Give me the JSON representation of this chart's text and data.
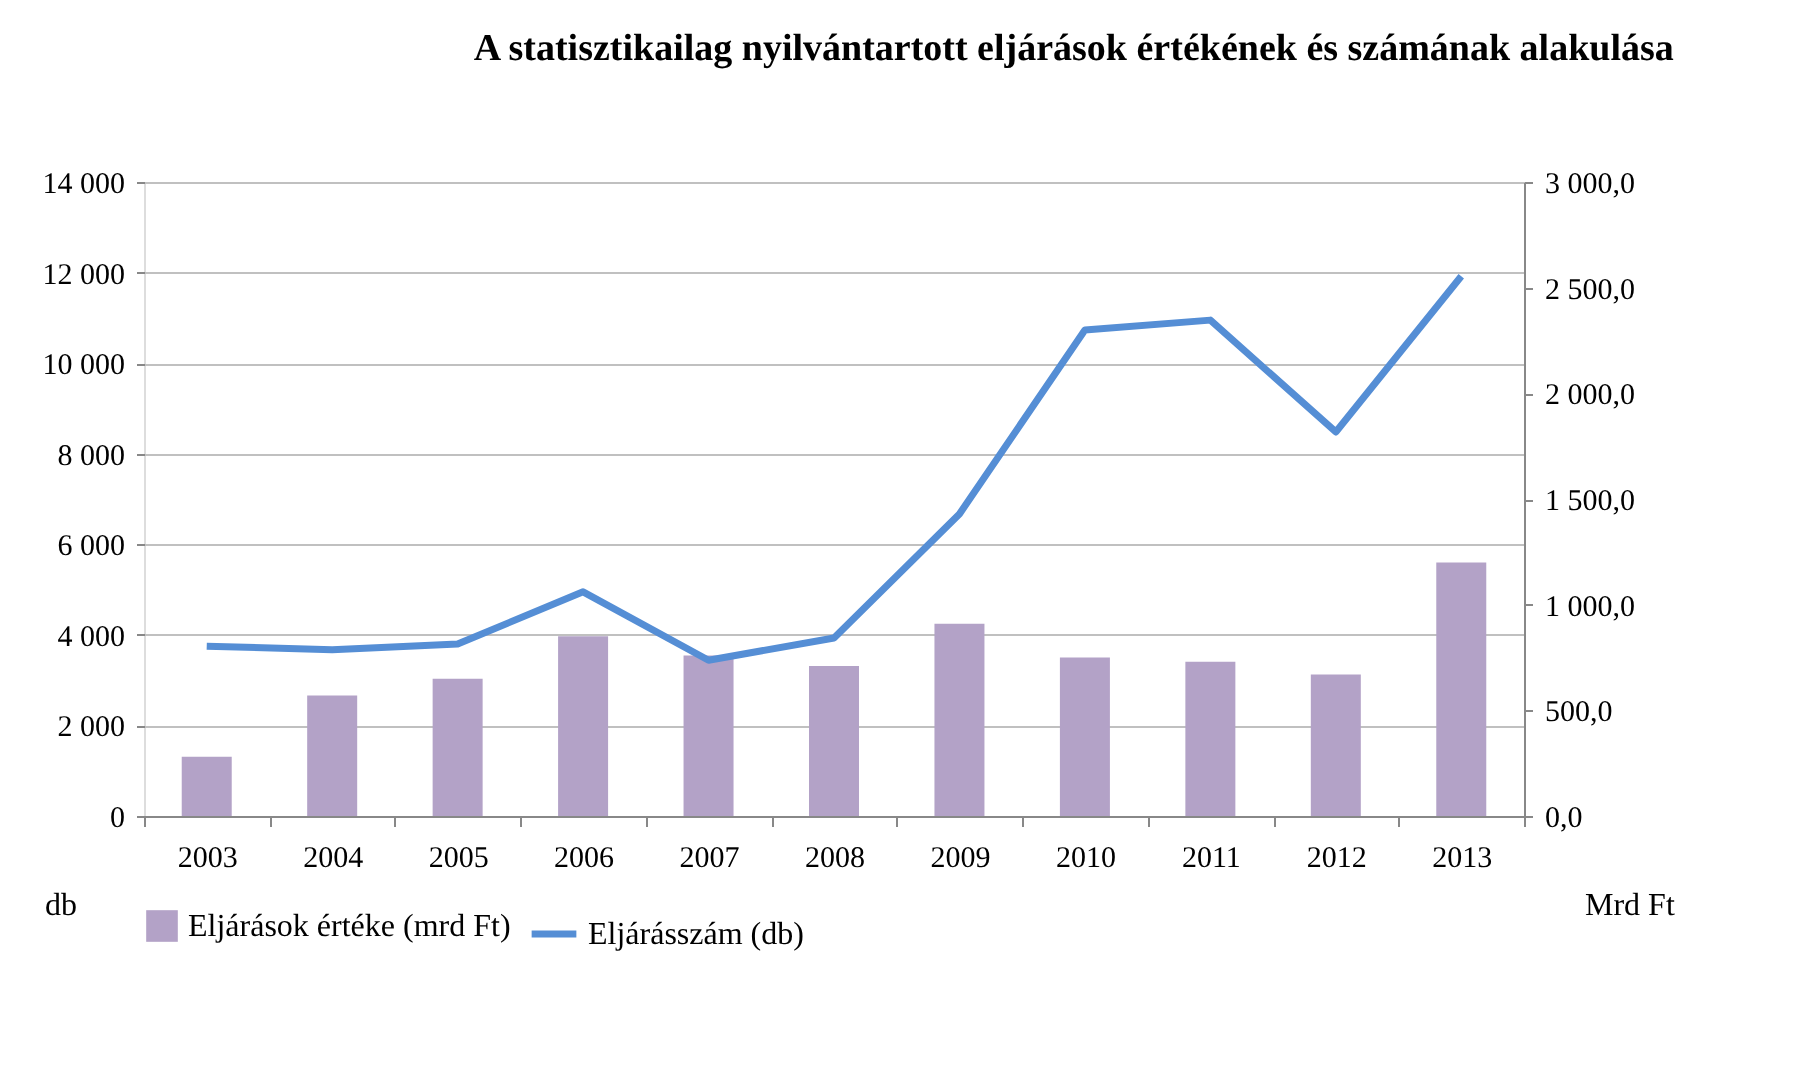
{
  "chart_data": {
    "type": "bar",
    "title": "A statisztikailag nyilvántartott eljárások értékének és számának alakulása",
    "xlabel": null,
    "ylabel": "db",
    "y2label": "Mrd Ft",
    "categories": [
      "2003",
      "2004",
      "2005",
      "2006",
      "2007",
      "2008",
      "2009",
      "2010",
      "2011",
      "2012",
      "2013"
    ],
    "series": [
      {
        "name": "Eljárások értéke (mrd Ft)",
        "axis": "y2",
        "color": "#b3a2c7",
        "values": [
          280,
          570,
          650,
          850,
          760,
          710,
          910,
          750,
          730,
          670,
          1200
        ]
      },
      {
        "name": "Eljárásszám (db)",
        "type": "line",
        "axis": "y",
        "color": "#558ed5",
        "values": [
          3750,
          3670,
          3800,
          4950,
          3440,
          3930,
          6670,
          10730,
          10950,
          8480,
          11920
        ]
      }
    ],
    "ylim": [
      0,
      14000
    ],
    "yticks": [
      {
        "value": 0,
        "label": "0"
      },
      {
        "value": 2000,
        "label": "2 000"
      },
      {
        "value": 4000,
        "label": "4 000"
      },
      {
        "value": 6000,
        "label": "6 000"
      },
      {
        "value": 8000,
        "label": "8 000"
      },
      {
        "value": 10000,
        "label": "10 000"
      },
      {
        "value": 12000,
        "label": "12 000"
      },
      {
        "value": 14000,
        "label": "14 000"
      }
    ],
    "y2lim": [
      0,
      3000
    ],
    "y2ticks": [
      {
        "value": 0,
        "label": "0,0"
      },
      {
        "value": 500,
        "label": "500,0"
      },
      {
        "value": 1000,
        "label": "1 000,0"
      },
      {
        "value": 1500,
        "label": "1 500,0"
      },
      {
        "value": 2000,
        "label": "2 000,0"
      },
      {
        "value": 2500,
        "label": "2 500,0"
      },
      {
        "value": 3000,
        "label": "3 000,0"
      }
    ],
    "grid": "y",
    "legend": "bottom",
    "marker": "none",
    "line_style": "solid"
  }
}
